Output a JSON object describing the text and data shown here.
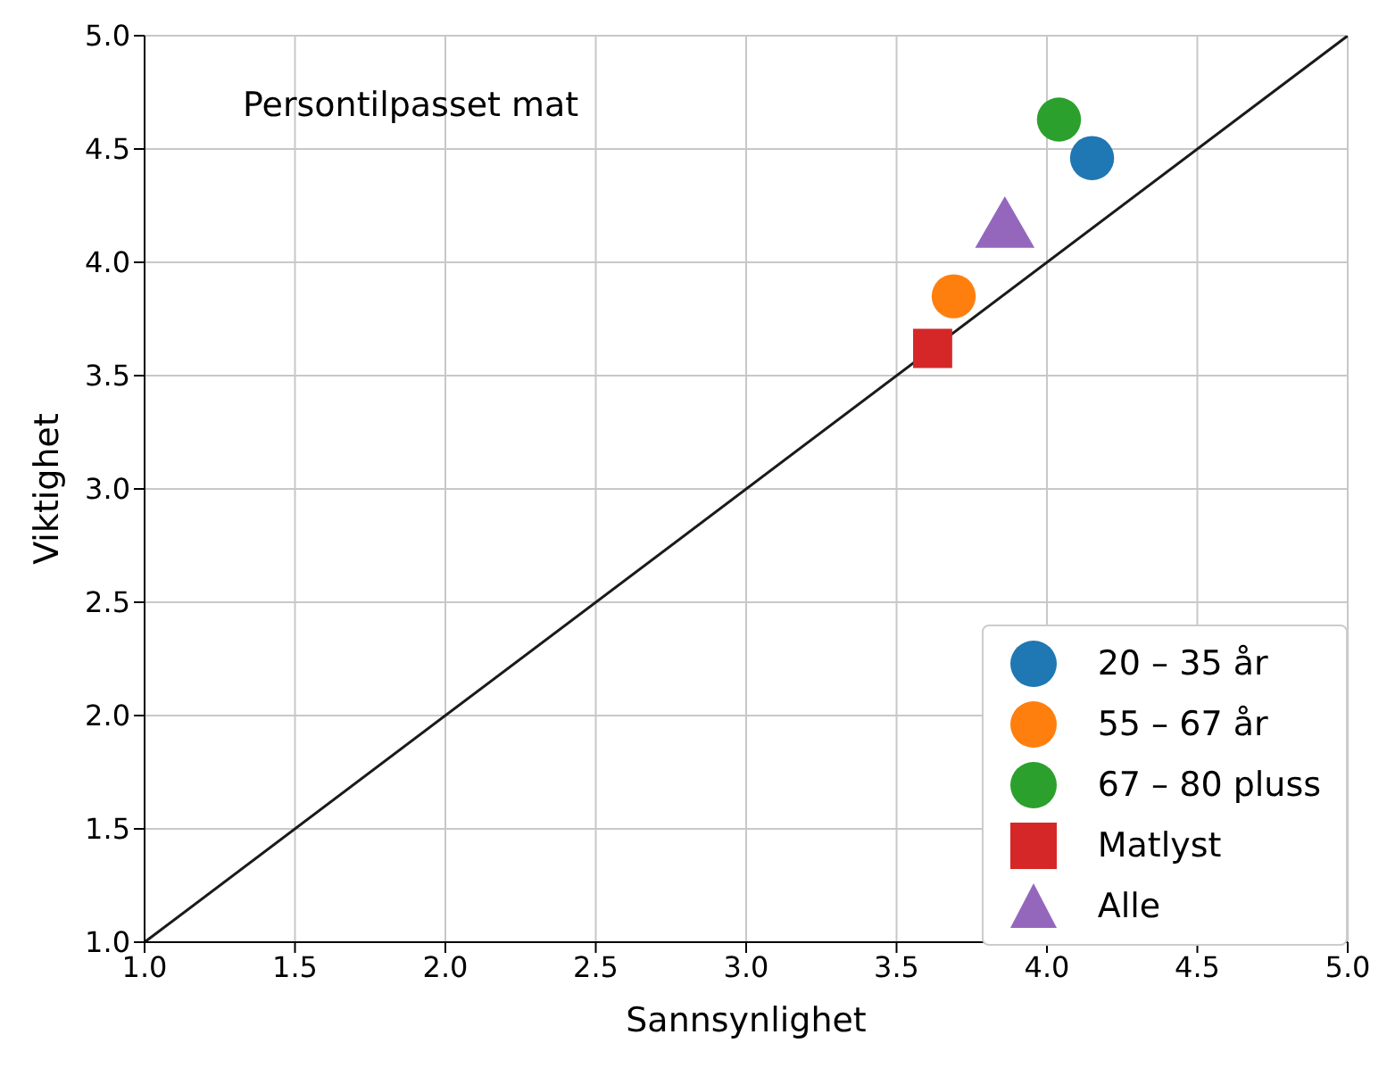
{
  "chart_data": {
    "type": "scatter",
    "xlabel": "Sannsynlighet",
    "ylabel": "Viktighet",
    "annotations": [
      "Persontilpasset mat"
    ],
    "xlim": [
      1.0,
      5.0
    ],
    "xticks": [
      {
        "value": 1,
        "label": "1.0"
      },
      {
        "value": 1.5,
        "label": "1.5"
      },
      {
        "value": 2,
        "label": "2.0"
      },
      {
        "value": 2.5,
        "label": "2.5"
      },
      {
        "value": 3,
        "label": "3.0"
      },
      {
        "value": 3.5,
        "label": "3.5"
      },
      {
        "value": 4,
        "label": "4.0"
      },
      {
        "value": 4.5,
        "label": "4.5"
      },
      {
        "value": 5,
        "label": "5.0"
      }
    ],
    "ylim": [
      1.0,
      5.0
    ],
    "yticks": [
      {
        "value": 1,
        "label": "1.0"
      },
      {
        "value": 1.5,
        "label": "1.5"
      },
      {
        "value": 2,
        "label": "2.0"
      },
      {
        "value": 2.5,
        "label": "2.5"
      },
      {
        "value": 3,
        "label": "3.0"
      },
      {
        "value": 3.5,
        "label": "3.5"
      },
      {
        "value": 4,
        "label": "4.0"
      },
      {
        "value": 4.5,
        "label": "4.5"
      },
      {
        "value": 5,
        "label": "5.0"
      }
    ],
    "grid": true,
    "legend": "bottom right",
    "series": [
      {
        "name": "20 – 35 år",
        "color": "#1f77b4",
        "marker": "circle",
        "x": [
          4.15
        ],
        "values": [
          4.46
        ]
      },
      {
        "name": "55 – 67 år",
        "color": "#ff7f0e",
        "marker": "circle",
        "x": [
          3.69
        ],
        "values": [
          3.85
        ]
      },
      {
        "name": "67 – 80 pluss",
        "color": "#2ca02c",
        "marker": "circle",
        "x": [
          4.04
        ],
        "values": [
          4.63
        ]
      },
      {
        "name": "Matlyst",
        "color": "#d62728",
        "marker": "square",
        "x": [
          3.62
        ],
        "values": [
          3.62
        ]
      },
      {
        "name": "Alle",
        "color": "#9467bd",
        "marker": "triangle",
        "x": [
          3.86
        ],
        "values": [
          4.14
        ]
      },
      {
        "type": "line",
        "color": "#1a1a1a",
        "marker": "none",
        "x": [
          1,
          5
        ],
        "values": [
          1,
          5
        ]
      }
    ]
  }
}
